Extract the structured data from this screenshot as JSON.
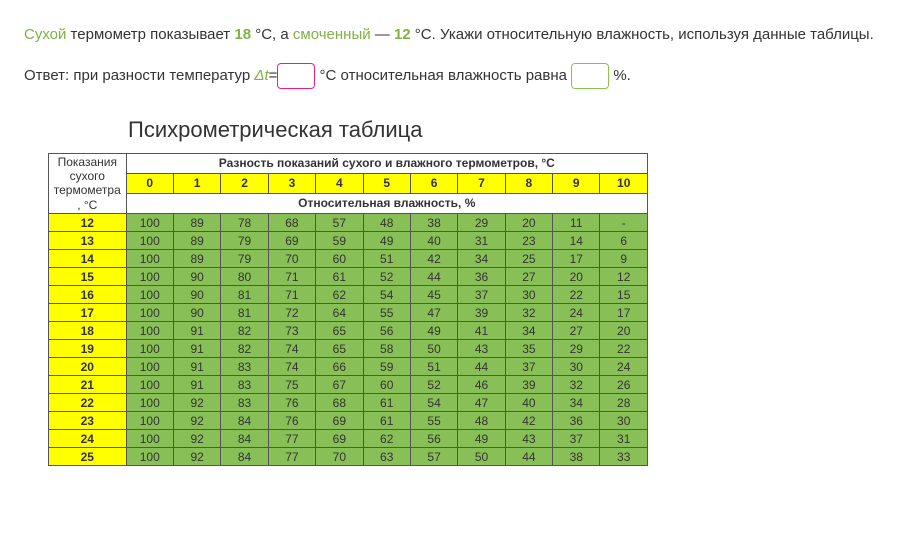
{
  "problem": {
    "word_dry": "Сухой",
    "text_after_dry": " термометр показывает ",
    "num_dry": "18",
    "unit_c": " °C, а ",
    "word_wet": "смоченный",
    "dash": " — ",
    "num_wet": "12",
    "text_tail": " °C. Укажи относительную влажность, используя данные таблицы."
  },
  "answer": {
    "prefix": "Ответ: при разности температур ",
    "delta": "Δt",
    "equals": "=",
    "mid": " °C относительная влажность равна ",
    "input1_value": "",
    "input2_value": "",
    "suffix": " %."
  },
  "table": {
    "title": "Психрометрическая таблица",
    "left_header": "Показания сухого термометра , °C",
    "top_header": "Разность показаний сухого и влажного термометров, °C",
    "col_nums": [
      "0",
      "1",
      "2",
      "3",
      "4",
      "5",
      "6",
      "7",
      "8",
      "9",
      "10"
    ],
    "rel_header": "Относительная влажность, %",
    "row_headers": [
      "12",
      "13",
      "14",
      "15",
      "16",
      "17",
      "18",
      "19",
      "20",
      "21",
      "22",
      "23",
      "24",
      "25"
    ],
    "rows": [
      [
        "100",
        "89",
        "78",
        "68",
        "57",
        "48",
        "38",
        "29",
        "20",
        "11",
        "-"
      ],
      [
        "100",
        "89",
        "79",
        "69",
        "59",
        "49",
        "40",
        "31",
        "23",
        "14",
        "6"
      ],
      [
        "100",
        "89",
        "79",
        "70",
        "60",
        "51",
        "42",
        "34",
        "25",
        "17",
        "9"
      ],
      [
        "100",
        "90",
        "80",
        "71",
        "61",
        "52",
        "44",
        "36",
        "27",
        "20",
        "12"
      ],
      [
        "100",
        "90",
        "81",
        "71",
        "62",
        "54",
        "45",
        "37",
        "30",
        "22",
        "15"
      ],
      [
        "100",
        "90",
        "81",
        "72",
        "64",
        "55",
        "47",
        "39",
        "32",
        "24",
        "17"
      ],
      [
        "100",
        "91",
        "82",
        "73",
        "65",
        "56",
        "49",
        "41",
        "34",
        "27",
        "20"
      ],
      [
        "100",
        "91",
        "82",
        "74",
        "65",
        "58",
        "50",
        "43",
        "35",
        "29",
        "22"
      ],
      [
        "100",
        "91",
        "83",
        "74",
        "66",
        "59",
        "51",
        "44",
        "37",
        "30",
        "24"
      ],
      [
        "100",
        "91",
        "83",
        "75",
        "67",
        "60",
        "52",
        "46",
        "39",
        "32",
        "26"
      ],
      [
        "100",
        "92",
        "83",
        "76",
        "68",
        "61",
        "54",
        "47",
        "40",
        "34",
        "28"
      ],
      [
        "100",
        "92",
        "84",
        "76",
        "69",
        "61",
        "55",
        "48",
        "42",
        "36",
        "30"
      ],
      [
        "100",
        "92",
        "84",
        "77",
        "69",
        "62",
        "56",
        "49",
        "43",
        "37",
        "31"
      ],
      [
        "100",
        "92",
        "84",
        "77",
        "70",
        "63",
        "57",
        "50",
        "44",
        "38",
        "33"
      ]
    ],
    "colors": {
      "header_bg": "#ffff00",
      "cell_bg": "#88c057",
      "border": "#555555"
    }
  }
}
